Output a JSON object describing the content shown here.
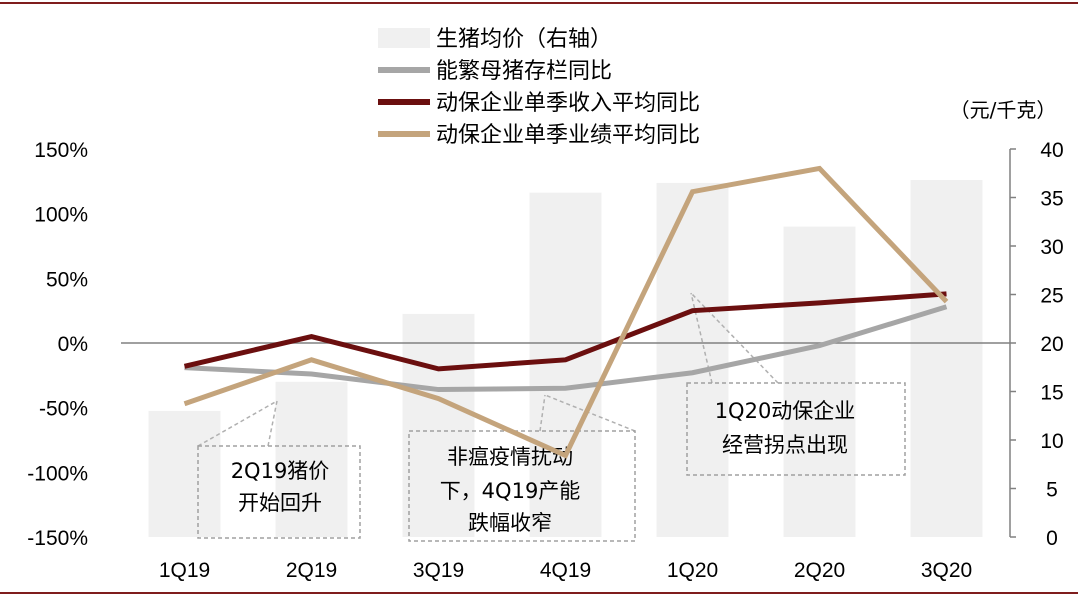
{
  "chart_data": {
    "type": "bar",
    "categories": [
      "1Q19",
      "2Q19",
      "3Q19",
      "4Q19",
      "1Q20",
      "2Q20",
      "3Q20"
    ],
    "series": [
      {
        "name": "生猪均价（右轴）",
        "type": "bar",
        "axis": "right",
        "color": "#f0f0f0",
        "values": [
          13.0,
          16.0,
          23.0,
          35.5,
          36.5,
          32.0,
          36.8
        ]
      },
      {
        "name": "能繁母猪存栏同比",
        "type": "line",
        "axis": "left",
        "color": "#a6a6a6",
        "values": [
          -19,
          -24,
          -36,
          -35,
          -23,
          -2,
          28
        ]
      },
      {
        "name": "动保企业单季收入平均同比",
        "type": "line",
        "axis": "left",
        "color": "#6b0f0f",
        "values": [
          -18,
          5,
          -20,
          -13,
          25,
          31,
          38
        ]
      },
      {
        "name": "动保企业单季业绩平均同比",
        "type": "line",
        "axis": "left",
        "color": "#c4a47c",
        "values": [
          -47,
          -13,
          -43,
          -87,
          117,
          135,
          32
        ]
      }
    ],
    "y_left": {
      "ticks": [
        "150%",
        "100%",
        "50%",
        "0%",
        "-50%",
        "-100%",
        "-150%"
      ],
      "ylim": [
        -150,
        150
      ]
    },
    "y_right": {
      "ticks": [
        "40",
        "35",
        "30",
        "25",
        "20",
        "15",
        "10",
        "5",
        "0"
      ],
      "ylim": [
        0,
        40
      ],
      "unit": "（元/千克）"
    },
    "legend_placement": "top-center",
    "grid": false,
    "annotations": [
      {
        "id": "ann-2q19",
        "lines": [
          "2Q19猪价",
          "开始回升"
        ]
      },
      {
        "id": "ann-4q19",
        "lines": [
          "非瘟疫情扰动",
          "下，4Q19产能",
          "跌幅收窄"
        ]
      },
      {
        "id": "ann-1q20",
        "lines": [
          "1Q20动保企业",
          "经营拐点出现"
        ]
      }
    ]
  }
}
